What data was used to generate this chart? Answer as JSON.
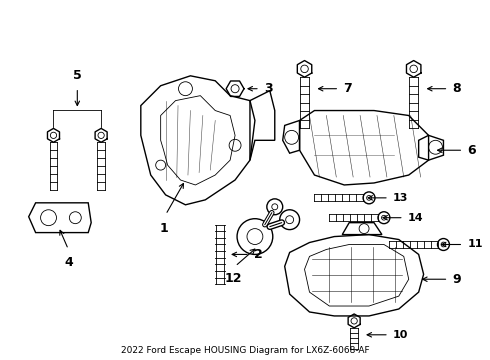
{
  "title": "2022 Ford Escape HOUSING Diagram for LX6Z-6068-AF",
  "background_color": "#ffffff",
  "line_color": "#000000",
  "figsize": [
    4.9,
    3.6
  ],
  "dpi": 100
}
